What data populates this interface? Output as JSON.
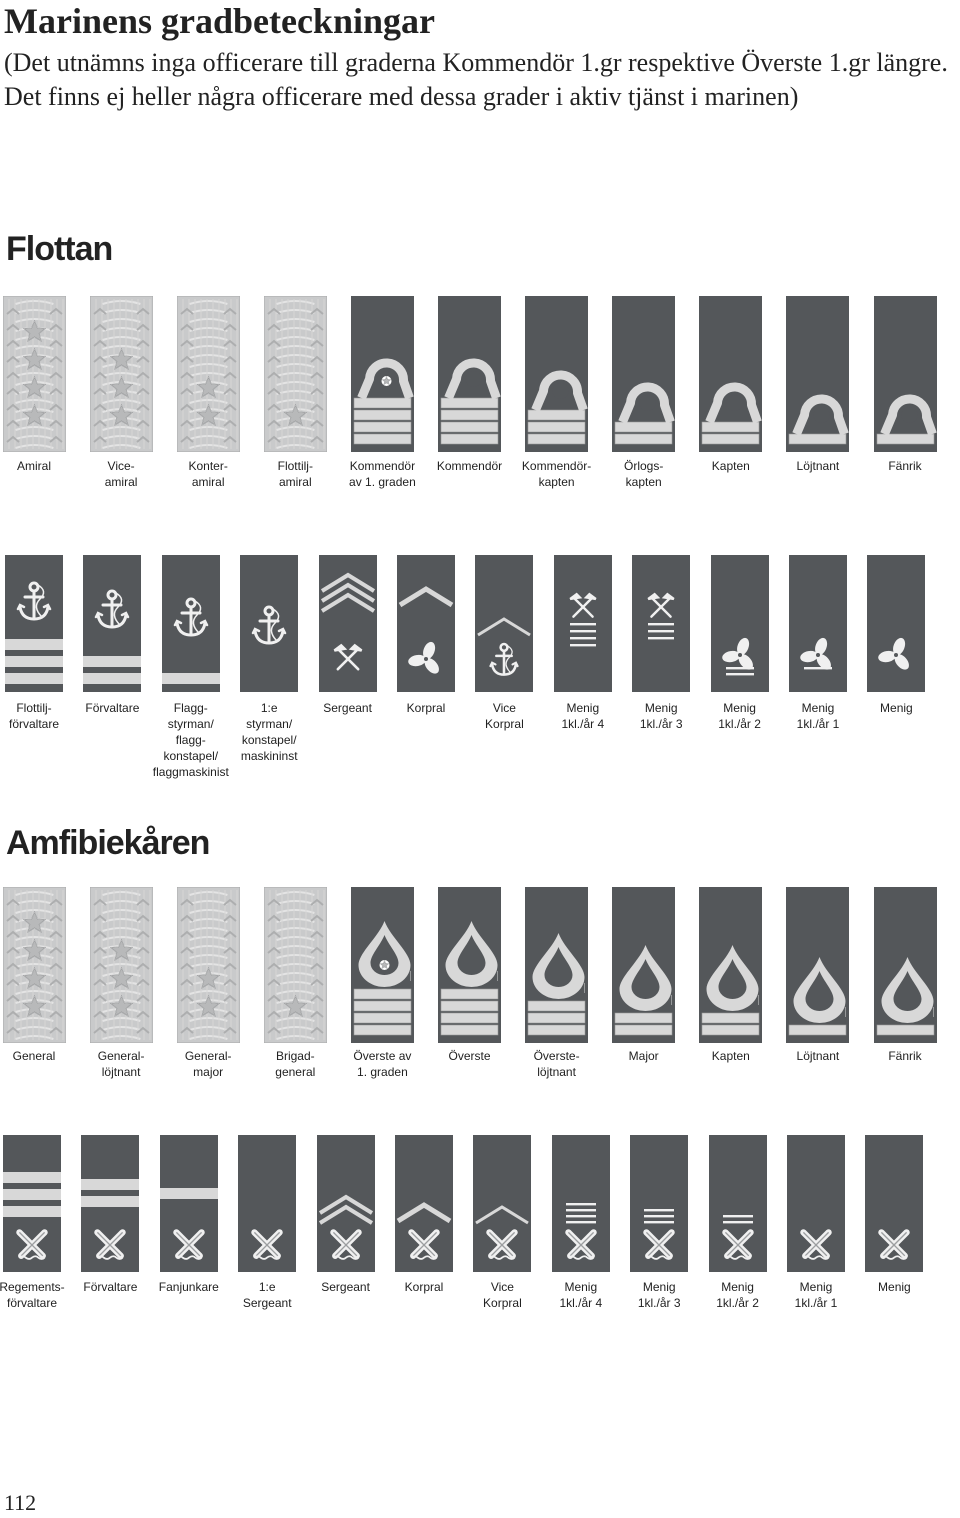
{
  "page": {
    "title": "Marinens gradbeteckningar",
    "subtitle": "(Det utnämns inga officerare till graderna Kommendör 1.gr respektive Överste 1.gr längre. Det finns ej heller några officerare med dessa grader i aktiv tjänst i marinen)",
    "page_number": "112"
  },
  "colors": {
    "dark_strap": "#54575a",
    "silver": "#c9cacb",
    "stripe": "#d8d8d8"
  },
  "sections": {
    "flottan": {
      "title": "Flottan",
      "officers": [
        {
          "label": "Amiral",
          "insignia": "silver-4-stars"
        },
        {
          "label": "Vice-\namiral",
          "insignia": "silver-3-stars"
        },
        {
          "label": "Konter-\namiral",
          "insignia": "silver-2-stars"
        },
        {
          "label": "Flottilj-\namiral",
          "insignia": "silver-1-star"
        },
        {
          "label": "Kommendör\nav 1. graden",
          "insignia": "loop-4-stripes-star"
        },
        {
          "label": "Kommendör",
          "insignia": "loop-4-stripes"
        },
        {
          "label": "Kommendör-\nkapten",
          "insignia": "loop-3-stripes"
        },
        {
          "label": "Örlogs-\nkapten",
          "insignia": "loop-2-stripes"
        },
        {
          "label": "Kapten",
          "insignia": "loop-2-stripes"
        },
        {
          "label": "Löjtnant",
          "insignia": "loop-1-stripe"
        },
        {
          "label": "Fänrik",
          "insignia": "loop-1-stripe"
        }
      ],
      "enlisted": [
        {
          "label": "Flottilj-\nförvaltare",
          "insignia": "anchor-3-bars"
        },
        {
          "label": "Förvaltare",
          "insignia": "anchor-2-bars"
        },
        {
          "label": "Flagg-\nstyrman/\nflagg-\nkonstapel/\nflaggmaskinist",
          "insignia": "anchor-1-bar"
        },
        {
          "label": "1:e\nstyrman/\nkonstapel/\nmaskininst",
          "insignia": "anchor"
        },
        {
          "label": "Sergeant",
          "insignia": "chevrons-axes"
        },
        {
          "label": "Korpral",
          "insignia": "chevron-propeller"
        },
        {
          "label": "Vice\nKorpral",
          "insignia": "chevron-anchor"
        },
        {
          "label": "Menig\n1kl./år 4",
          "insignia": "axes-4-lines"
        },
        {
          "label": "Menig\n1kl./år 3",
          "insignia": "axes-3-lines"
        },
        {
          "label": "Menig\n1kl./år 2",
          "insignia": "propeller-2-lines"
        },
        {
          "label": "Menig\n1kl./år 1",
          "insignia": "propeller-1-line"
        },
        {
          "label": "Menig",
          "insignia": "propeller"
        }
      ]
    },
    "amfibiekaren": {
      "title": "Amfibiekåren",
      "officers": [
        {
          "label": "General",
          "insignia": "silver-4-stars"
        },
        {
          "label": "General-\nlöjtnant",
          "insignia": "silver-3-stars"
        },
        {
          "label": "General-\nmajor",
          "insignia": "silver-2-stars"
        },
        {
          "label": "Brigad-\ngeneral",
          "insignia": "silver-1-star"
        },
        {
          "label": "Överste av\n1. graden",
          "insignia": "drop-4-stripes-star"
        },
        {
          "label": "Överste",
          "insignia": "drop-4-stripes"
        },
        {
          "label": "Överste-\nlöjtnant",
          "insignia": "drop-3-stripes"
        },
        {
          "label": "Major",
          "insignia": "drop-2-stripes"
        },
        {
          "label": "Kapten",
          "insignia": "drop-2-stripes"
        },
        {
          "label": "Löjtnant",
          "insignia": "drop-1-stripe"
        },
        {
          "label": "Fänrik",
          "insignia": "drop-1-stripe"
        }
      ],
      "enlisted": [
        {
          "label": "Regements-\nförvaltare",
          "insignia": "cannons-3-bars"
        },
        {
          "label": "Förvaltare",
          "insignia": "cannons-2-bars"
        },
        {
          "label": "Fanjunkare",
          "insignia": "cannons-1-bar"
        },
        {
          "label": "1:e\nSergeant",
          "insignia": "cannons"
        },
        {
          "label": "Sergeant",
          "insignia": "cannons-chevrons"
        },
        {
          "label": "Korpral",
          "insignia": "cannons-chevron"
        },
        {
          "label": "Vice\nKorpral",
          "insignia": "cannons-small-chevron"
        },
        {
          "label": "Menig\n1kl./år 4",
          "insignia": "cannons-4-lines"
        },
        {
          "label": "Menig\n1kl./år 3",
          "insignia": "cannons-3-lines"
        },
        {
          "label": "Menig\n1kl./år 2",
          "insignia": "cannons-2-lines"
        },
        {
          "label": "Menig\n1kl./år 1",
          "insignia": "cannons-1-line"
        },
        {
          "label": "Menig",
          "insignia": "cannons"
        }
      ]
    }
  }
}
